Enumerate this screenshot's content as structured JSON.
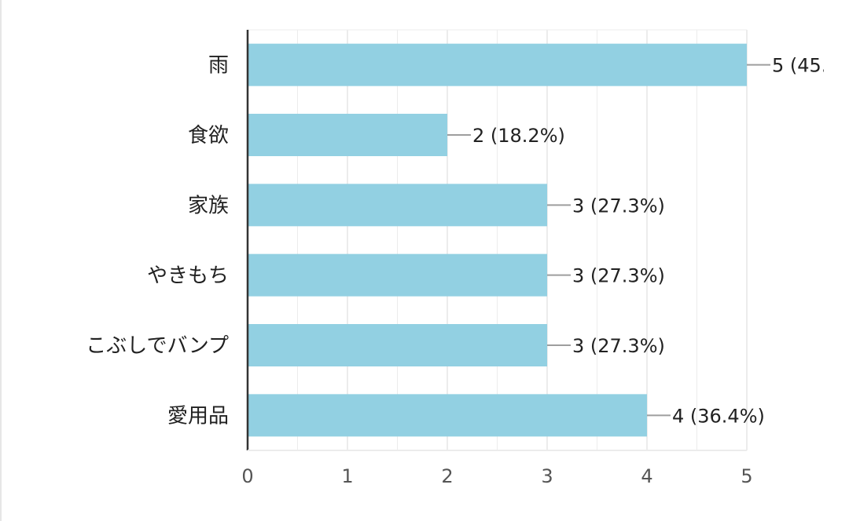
{
  "chart_data": {
    "type": "bar",
    "orientation": "horizontal",
    "categories": [
      "雨",
      "食欲",
      "家族",
      "やきもち",
      "こぶしでバンプ",
      "愛用品"
    ],
    "values": [
      5,
      2,
      3,
      3,
      3,
      4
    ],
    "data_labels": [
      "5 (45.",
      "2 (18.2%)",
      "3 (27.3%)",
      "3 (27.3%)",
      "3 (27.3%)",
      "4 (36.4%)"
    ],
    "x_ticks": [
      "0",
      "1",
      "2",
      "3",
      "4",
      "5"
    ],
    "xlim": [
      0,
      5
    ],
    "grid": true,
    "title": "",
    "xlabel": "",
    "ylabel": "",
    "colors": {
      "bar": "#92d0e2",
      "axis": "#333333",
      "grid": "#ececec",
      "leader": "#9e9e9e"
    }
  }
}
